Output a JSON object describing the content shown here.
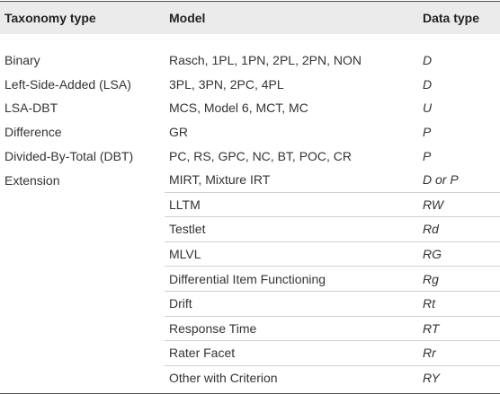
{
  "table": {
    "header": [
      "Taxonomy type",
      "Model",
      "Data type"
    ],
    "rows": [
      [
        "Binary",
        "Rasch, 1PL, 1PN, 2PL, 2PN, NON",
        "D"
      ],
      [
        "Left-Side-Added (LSA)",
        "3PL, 3PN, 2PC, 4PL",
        "D"
      ],
      [
        "LSA-DBT",
        "MCS, Model 6, MCT, MC",
        "U"
      ],
      [
        "Difference",
        "GR",
        "P"
      ],
      [
        "Divided-By-Total (DBT)",
        "PC, RS, GPC, NC, BT, POC, CR",
        "P"
      ],
      [
        "Extension",
        "MIRT, Mixture IRT",
        "D or P"
      ],
      [
        null,
        "LLTM",
        "RW"
      ],
      [
        null,
        "Testlet",
        "Rd"
      ],
      [
        null,
        "MLVL",
        "RG"
      ],
      [
        null,
        "Differential Item Functioning",
        "Rg"
      ],
      [
        null,
        "Drift",
        "Rt"
      ],
      [
        null,
        "Response Time",
        "RT"
      ],
      [
        null,
        "Rater Facet",
        "Rr"
      ],
      [
        null,
        "Other with Criterion",
        "RY"
      ]
    ]
  }
}
